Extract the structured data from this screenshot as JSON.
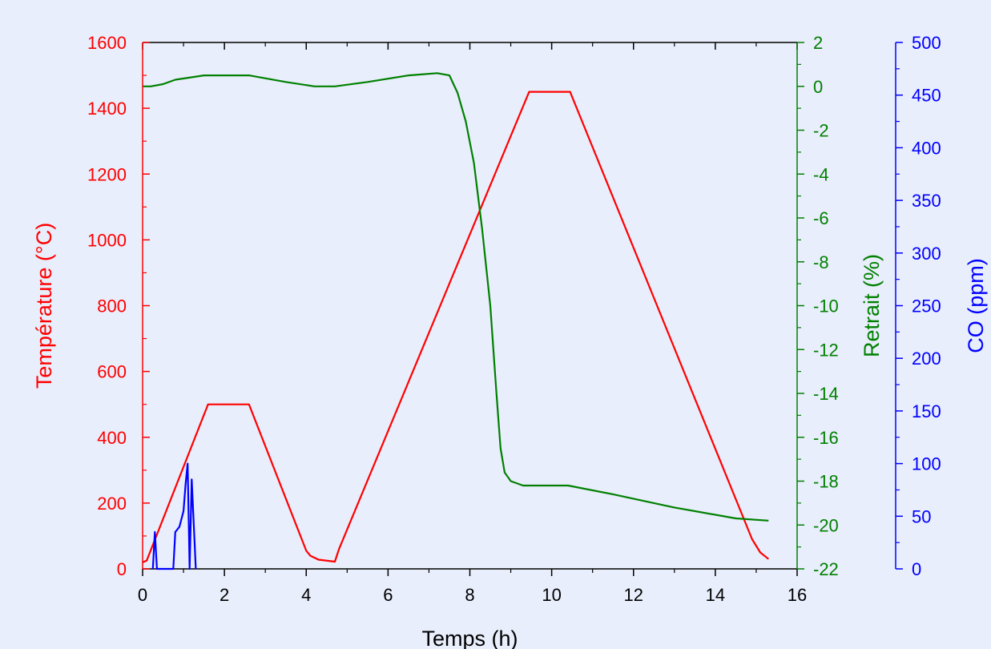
{
  "chart_data": {
    "type": "line",
    "title": "",
    "xlabel": "Temps (h)",
    "xlim": [
      0,
      16
    ],
    "x_ticks": [
      0,
      2,
      4,
      6,
      8,
      10,
      12,
      14,
      16
    ],
    "y_axes": {
      "temperature": {
        "label": "Température (°C)",
        "color": "#ff0000",
        "lim": [
          0,
          1600
        ],
        "ticks": [
          0,
          200,
          400,
          600,
          800,
          1000,
          1200,
          1400,
          1600
        ]
      },
      "retrait": {
        "label": "Retrait (%)",
        "color": "#008000",
        "lim": [
          -22,
          2
        ],
        "ticks": [
          2,
          0,
          -2,
          -4,
          -6,
          -8,
          -10,
          -12,
          -14,
          -16,
          -18,
          -20,
          -22
        ]
      },
      "co": {
        "label": "CO (ppm)",
        "color": "#0000ff",
        "lim": [
          0,
          500
        ],
        "ticks": [
          0,
          50,
          100,
          150,
          200,
          250,
          300,
          350,
          400,
          450,
          500
        ]
      }
    },
    "series": [
      {
        "axis": "temperature",
        "color": "#ff0000",
        "points": [
          [
            0,
            20
          ],
          [
            0.1,
            25
          ],
          [
            1.6,
            500
          ],
          [
            2.6,
            500
          ],
          [
            4.0,
            55
          ],
          [
            4.1,
            40
          ],
          [
            4.3,
            28
          ],
          [
            4.7,
            22
          ],
          [
            4.8,
            60
          ],
          [
            9.45,
            1450
          ],
          [
            10.45,
            1450
          ],
          [
            14.9,
            90
          ],
          [
            15.1,
            50
          ],
          [
            15.3,
            30
          ]
        ]
      },
      {
        "axis": "retrait",
        "color": "#008000",
        "points": [
          [
            0,
            0
          ],
          [
            0.2,
            0
          ],
          [
            0.5,
            0.1
          ],
          [
            0.8,
            0.3
          ],
          [
            1.5,
            0.5
          ],
          [
            2.6,
            0.5
          ],
          [
            3.5,
            0.2
          ],
          [
            4.2,
            0
          ],
          [
            4.7,
            0
          ],
          [
            5.5,
            0.2
          ],
          [
            6.5,
            0.5
          ],
          [
            7.2,
            0.6
          ],
          [
            7.5,
            0.5
          ],
          [
            7.7,
            -0.3
          ],
          [
            7.9,
            -1.6
          ],
          [
            8.1,
            -3.5
          ],
          [
            8.3,
            -6.5
          ],
          [
            8.5,
            -10
          ],
          [
            8.65,
            -14
          ],
          [
            8.75,
            -16.5
          ],
          [
            8.85,
            -17.6
          ],
          [
            9.0,
            -18
          ],
          [
            9.3,
            -18.2
          ],
          [
            10.4,
            -18.2
          ],
          [
            11.5,
            -18.6
          ],
          [
            13.0,
            -19.2
          ],
          [
            14.5,
            -19.7
          ],
          [
            15.3,
            -19.8
          ]
        ]
      },
      {
        "axis": "co",
        "color": "#0000ff",
        "points": [
          [
            0.25,
            0
          ],
          [
            0.3,
            35
          ],
          [
            0.35,
            0
          ],
          [
            0.75,
            0
          ],
          [
            0.8,
            35
          ],
          [
            0.9,
            40
          ],
          [
            1.0,
            55
          ],
          [
            1.05,
            80
          ],
          [
            1.1,
            100
          ],
          [
            1.15,
            0
          ],
          [
            1.2,
            85
          ],
          [
            1.3,
            0
          ]
        ]
      }
    ]
  }
}
